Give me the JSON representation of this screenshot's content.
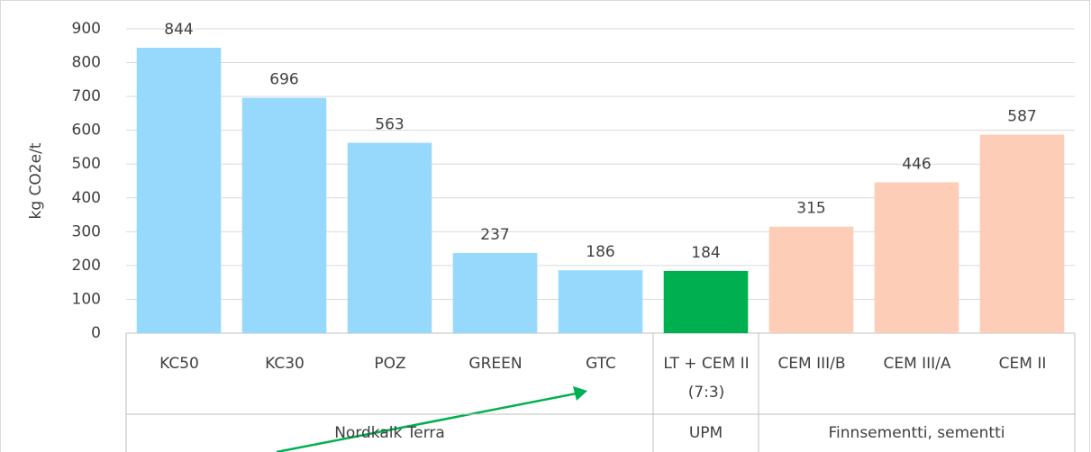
{
  "chart_data": {
    "type": "bar",
    "y_label": "kg CO2e/t",
    "ylim": [
      0,
      900
    ],
    "yticks": [
      0,
      100,
      200,
      300,
      400,
      500,
      600,
      700,
      800,
      900
    ],
    "grid": true,
    "groups": [
      {
        "name": "Nordkalk Terra",
        "color": "#97d9fd",
        "categories": [
          "KC50",
          "KC30",
          "POZ",
          "GREEN",
          "GTC"
        ],
        "values": [
          844,
          696,
          563,
          237,
          186
        ]
      },
      {
        "name": "UPM",
        "color": "#00b050",
        "categories": [
          "LT + CEM II\n(7:3)"
        ],
        "values": [
          184
        ]
      },
      {
        "name": "Finnsementti, sementti",
        "color": "#fdcdb7",
        "categories": [
          "CEM III/B",
          "CEM III/A",
          "CEM II"
        ],
        "values": [
          315,
          446,
          587
        ]
      }
    ]
  }
}
